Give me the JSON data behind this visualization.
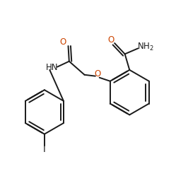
{
  "bg_color": "#ffffff",
  "line_color": "#1a1a1a",
  "o_color": "#cc4400",
  "n_color": "#1a1a1a",
  "i_color": "#1a1a1a",
  "line_width": 1.4,
  "font_size": 8.5,
  "figsize": [
    2.66,
    2.56
  ],
  "dpi": 100,
  "xlim": [
    0,
    10
  ],
  "ylim": [
    0,
    9.6
  ]
}
